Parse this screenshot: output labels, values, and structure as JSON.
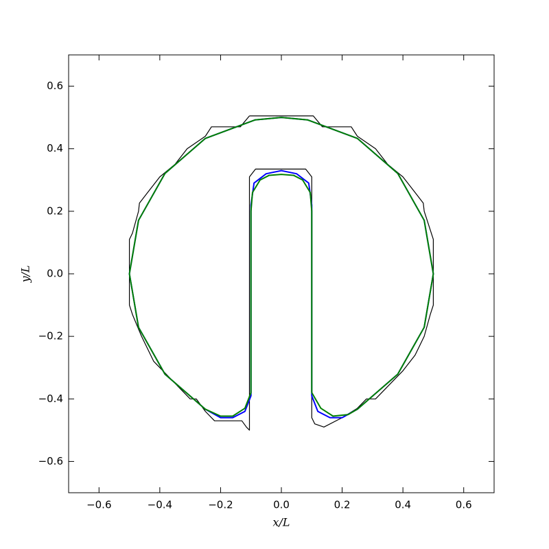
{
  "chart_data": {
    "type": "line",
    "xlabel": "x/L",
    "ylabel": "y/L",
    "xlim": [
      -0.7,
      0.7
    ],
    "ylim": [
      -0.7,
      0.7
    ],
    "xticks": [
      {
        "value": -0.6,
        "label": "−0.6"
      },
      {
        "value": -0.4,
        "label": "−0.4"
      },
      {
        "value": -0.2,
        "label": "−0.2"
      },
      {
        "value": 0,
        "label": "0.0"
      },
      0.2,
      0.4,
      0.6
    ],
    "yticks": [
      {
        "value": -0.6,
        "label": "−0.6"
      },
      {
        "value": -0.4,
        "label": "−0.4"
      },
      {
        "value": -0.2,
        "label": "−0.2"
      },
      {
        "value": 0,
        "label": "0.0"
      },
      0.2,
      0.4,
      0.6
    ],
    "grid": false,
    "series": [
      {
        "color": "#000000",
        "x": [
          -0.105,
          0.105,
          0.135,
          0.23,
          0.25,
          0.31,
          0.35,
          0.4,
          0.44,
          0.467,
          0.47,
          0.5,
          0.5,
          0.49,
          0.47,
          0.44,
          0.4,
          0.35,
          0.31,
          0.28,
          0.25,
          0.2,
          0.14,
          0.11,
          0.1,
          0.1,
          0.08,
          -0.085,
          -0.105,
          -0.105,
          -0.115,
          -0.13,
          -0.22,
          -0.25,
          -0.28,
          -0.3,
          -0.38,
          -0.42,
          -0.46,
          -0.49,
          -0.5,
          -0.5,
          -0.49,
          -0.47,
          -0.467,
          -0.44,
          -0.4,
          -0.35,
          -0.31,
          -0.25,
          -0.23,
          -0.135,
          -0.105
        ],
        "values": [
          0.505,
          0.505,
          0.47,
          0.47,
          0.44,
          0.4,
          0.35,
          0.31,
          0.26,
          0.226,
          0.2,
          0.11,
          -0.1,
          -0.13,
          -0.2,
          -0.26,
          -0.31,
          -0.36,
          -0.4,
          -0.4,
          -0.43,
          -0.46,
          -0.49,
          -0.48,
          -0.46,
          0.31,
          0.335,
          0.335,
          0.31,
          -0.5,
          -0.49,
          -0.47,
          -0.47,
          -0.44,
          -0.4,
          -0.4,
          -0.32,
          -0.28,
          -0.2,
          -0.13,
          -0.1,
          0.11,
          0.13,
          0.2,
          0.226,
          0.26,
          0.31,
          0.35,
          0.4,
          0.44,
          0.47,
          0.47,
          0.505
        ]
      },
      {
        "color": "#0000ff",
        "x": [
          0.1,
          0.12,
          0.16,
          0.2,
          0.25,
          0.383,
          0.47,
          0.5,
          0.47,
          0.383,
          0.25,
          0.087,
          0,
          -0.087,
          -0.25,
          -0.383,
          -0.47,
          -0.5,
          -0.47,
          -0.383,
          -0.25,
          -0.2,
          -0.16,
          -0.12,
          -0.1,
          -0.1,
          -0.1,
          -0.1,
          -0.09,
          -0.05,
          0,
          0.05,
          0.09,
          0.1,
          0.1,
          0.1,
          0.1
        ],
        "values": [
          -0.39,
          -0.44,
          -0.46,
          -0.46,
          -0.433,
          -0.321,
          -0.171,
          0,
          0.171,
          0.321,
          0.433,
          0.492,
          0.5,
          0.492,
          0.433,
          0.321,
          0.171,
          0,
          -0.171,
          -0.321,
          -0.433,
          -0.46,
          -0.46,
          -0.44,
          -0.39,
          -0.2,
          0,
          0.22,
          0.29,
          0.32,
          0.33,
          0.32,
          0.29,
          0.22,
          0,
          -0.2,
          -0.39
        ]
      },
      {
        "color": "#008000",
        "x": [
          0.1,
          0.13,
          0.17,
          0.22,
          0.25,
          0.383,
          0.47,
          0.5,
          0.47,
          0.383,
          0.25,
          0.087,
          0,
          -0.087,
          -0.25,
          -0.383,
          -0.47,
          -0.5,
          -0.47,
          -0.383,
          -0.25,
          -0.2,
          -0.16,
          -0.12,
          -0.1,
          -0.1,
          -0.1,
          -0.1,
          -0.095,
          -0.07,
          -0.04,
          0,
          0.04,
          0.07,
          0.095,
          0.1,
          0.1,
          0.1,
          0.1
        ],
        "values": [
          -0.38,
          -0.43,
          -0.455,
          -0.45,
          -0.433,
          -0.321,
          -0.171,
          0,
          0.171,
          0.321,
          0.433,
          0.492,
          0.5,
          0.492,
          0.433,
          0.321,
          0.171,
          0,
          -0.171,
          -0.321,
          -0.433,
          -0.455,
          -0.455,
          -0.43,
          -0.38,
          -0.2,
          0,
          0.2,
          0.26,
          0.3,
          0.315,
          0.318,
          0.315,
          0.3,
          0.26,
          0.2,
          0,
          -0.2,
          -0.38
        ]
      }
    ]
  }
}
